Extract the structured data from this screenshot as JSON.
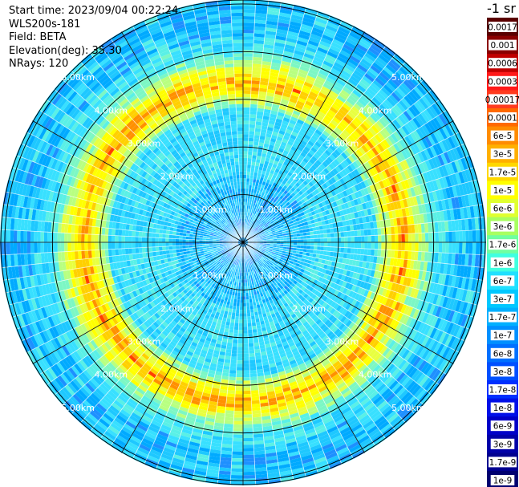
{
  "header": {
    "start_time": "Start time: 2023/09/04 00:22:24",
    "instrument": "WLS200s-181",
    "field": "Field: BETA",
    "elevation": "Elevation(deg): 35.30",
    "nrays": "NRays: 120"
  },
  "colorbar": {
    "unit_label": "-1 sr",
    "ticks": [
      "0.0017",
      "0.001",
      "0.0006",
      "0.0003",
      "0.00017",
      "0.0001",
      "6e-5",
      "3e-5",
      "1.7e-5",
      "1e-5",
      "6e-6",
      "3e-6",
      "1.7e-6",
      "1e-6",
      "6e-7",
      "3e-7",
      "1.7e-7",
      "1e-7",
      "6e-8",
      "3e-8",
      "1.7e-8",
      "1e-8",
      "6e-9",
      "3e-9",
      "1.7e-9",
      "1e-9"
    ],
    "colors": [
      "#5a0000",
      "#8b0000",
      "#c00000",
      "#ff1a1a",
      "#ff3b1f",
      "#ff6a00",
      "#ff8c00",
      "#ffb000",
      "#ffd800",
      "#ffff00",
      "#e0ff30",
      "#a8ff60",
      "#70ffa0",
      "#40ffe0",
      "#20e0ff",
      "#00c8ff",
      "#00b0ff",
      "#0090ff",
      "#0070ff",
      "#0050ff",
      "#0030ff",
      "#0010e8",
      "#0000c8",
      "#0000a8",
      "#000090",
      "#000070"
    ]
  },
  "chart_data": {
    "type": "heatmap",
    "projection": "polar (PPI scan)",
    "field": "BETA",
    "nrays": 120,
    "range_rings_km": [
      1,
      2,
      3,
      4,
      5
    ],
    "range_labels": [
      "1.00km",
      "2.00km",
      "3.00km",
      "4.00km",
      "5.00km"
    ],
    "max_range_km": 5.1,
    "radial_spokes_deg": [
      0,
      30,
      60,
      90,
      120,
      150,
      180,
      210,
      240,
      270,
      300,
      330
    ],
    "ring_feature_km": 3.35,
    "color_scale": "log",
    "color_range": [
      1e-09,
      0.0017
    ]
  }
}
